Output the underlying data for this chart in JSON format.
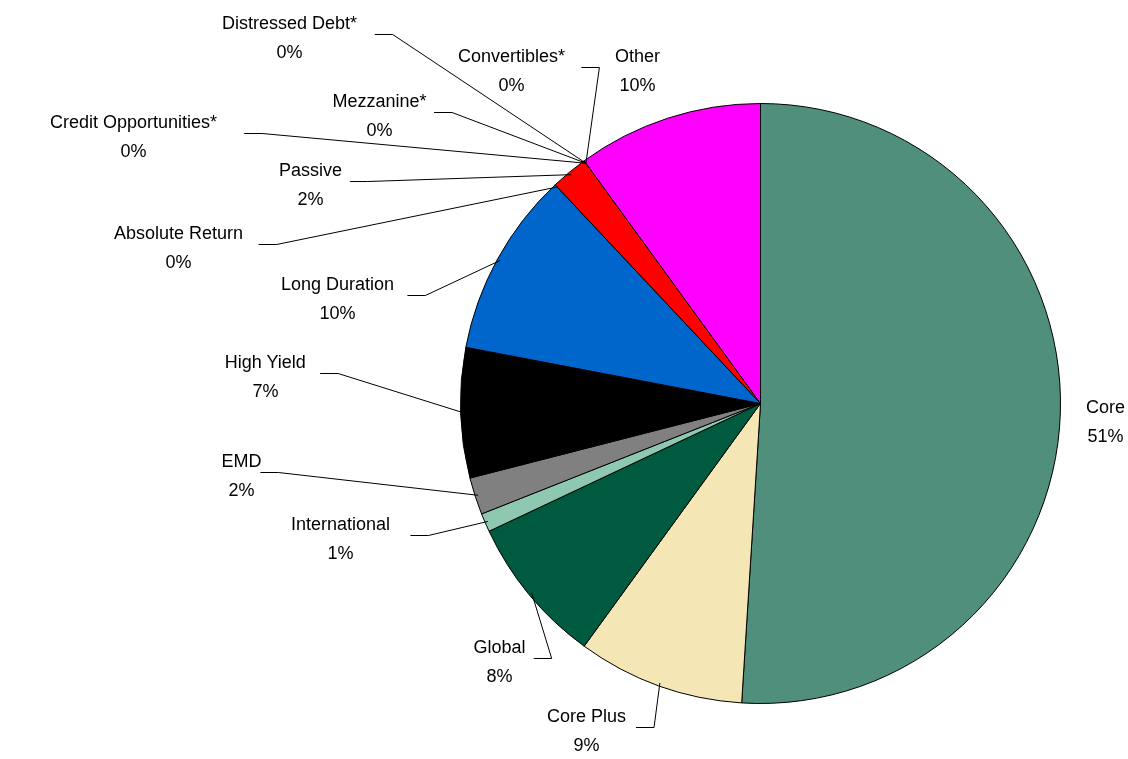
{
  "chart_data": {
    "type": "pie",
    "data_labels": true,
    "categories": [
      "Core",
      "Core Plus",
      "Global",
      "International",
      "EMD",
      "High Yield",
      "Long Duration",
      "Absolute Return",
      "Passive",
      "Credit Opportunities*",
      "Mezzanine*",
      "Convertibles*",
      "Distressed Debt*",
      "Other"
    ],
    "values": [
      51,
      9,
      8,
      1,
      2,
      7,
      10,
      0,
      2,
      0,
      0,
      0,
      0,
      10
    ],
    "value_labels": [
      "51%",
      "9%",
      "8%",
      "1%",
      "2%",
      "7%",
      "10%",
      "0%",
      "2%",
      "0%",
      "0%",
      "0%",
      "0%",
      "10%"
    ],
    "colors": [
      "#4f8f7c",
      "#f5e6b5",
      "#005a40",
      "#8ec8b0",
      "#808080",
      "#000000",
      "#0066cc",
      "#c0c0c0",
      "#ff0000",
      "#99ccff",
      "#ff9900",
      "#ffff00",
      "#663300",
      "#ff00ff"
    ]
  }
}
